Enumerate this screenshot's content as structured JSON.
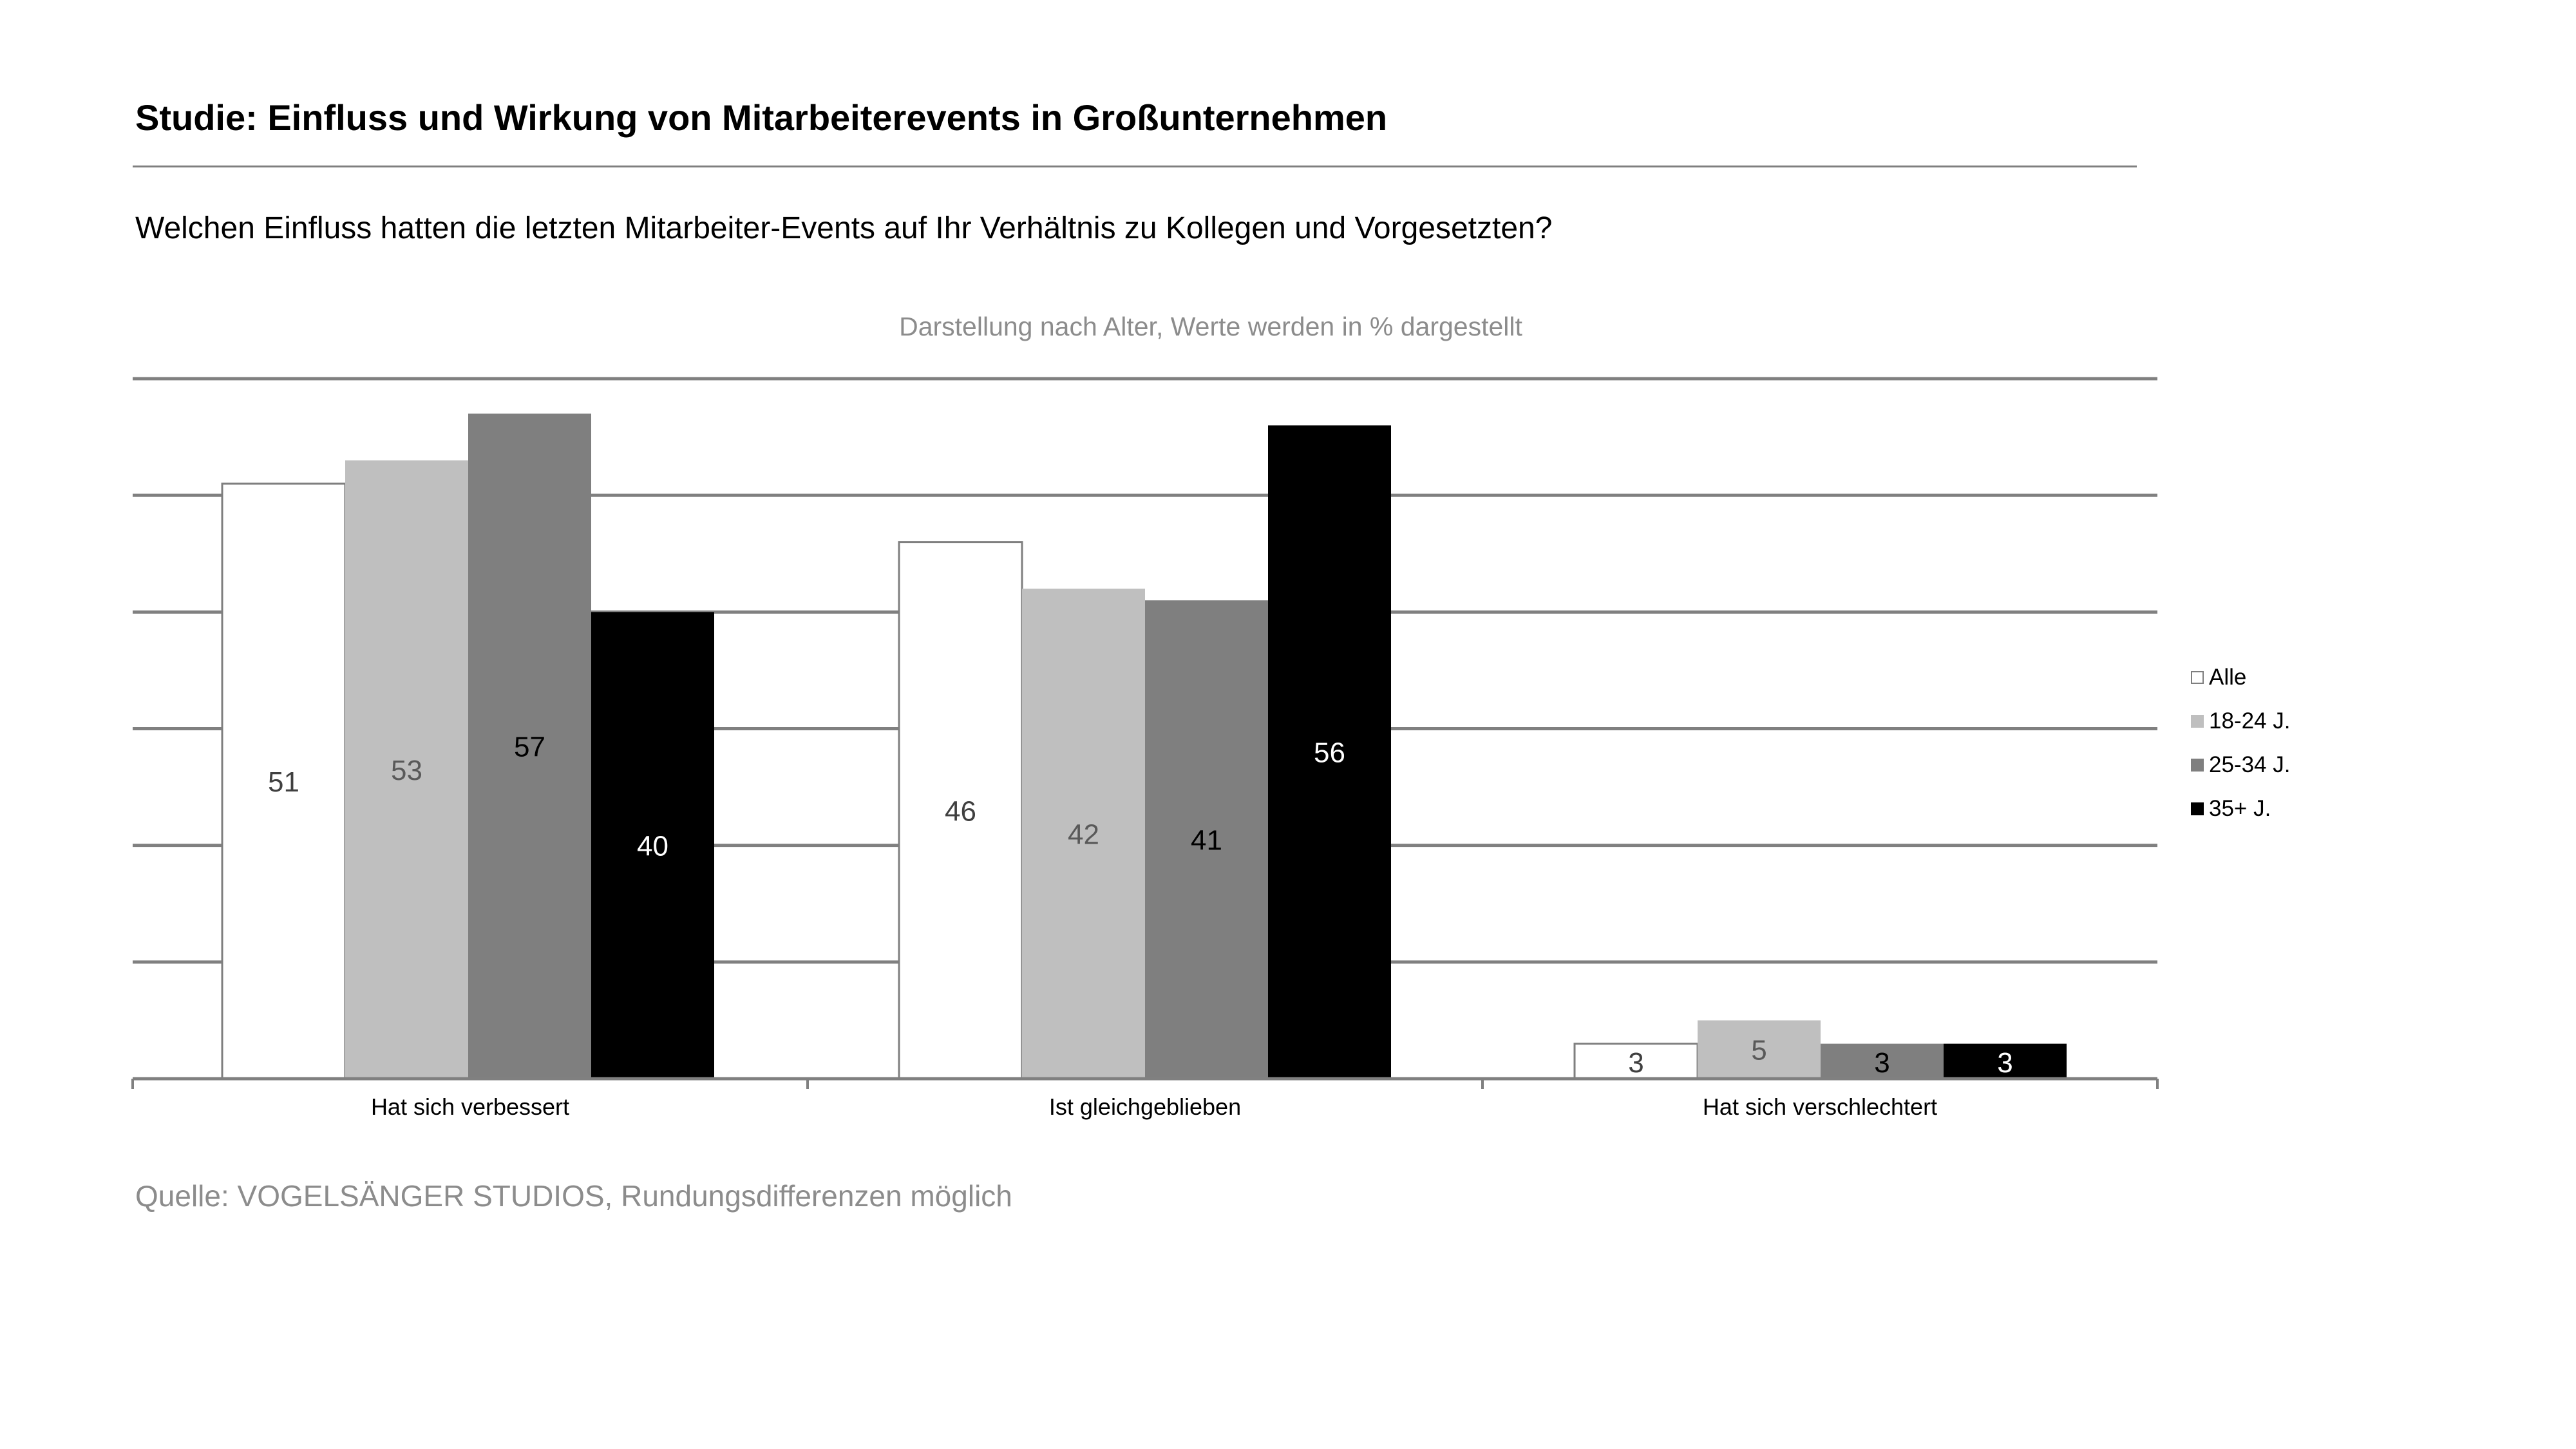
{
  "header": {
    "title": "Studie: Einfluss und Wirkung von Mitarbeiterevents in Großunternehmen",
    "question": "Welchen Einfluss hatten die letzten Mitarbeiter-Events auf Ihr Verhältnis zu Kollegen und Vorgesetzten?"
  },
  "footer": {
    "source": "Quelle: VOGELSÄNGER STUDIOS, Rundungsdifferenzen möglich"
  },
  "chart_data": {
    "type": "bar",
    "subtitle": "Darstellung nach Alter, Werte werden in % dargestellt",
    "categories": [
      "Hat sich verbessert",
      "Ist gleichgeblieben",
      "Hat sich verschlechtert"
    ],
    "series": [
      {
        "name": "Alle",
        "values": [
          51,
          46,
          3
        ],
        "color": "#ffffff",
        "label_color": "#404040"
      },
      {
        "name": "18-24 J.",
        "values": [
          53,
          42,
          5
        ],
        "color": "#bfbfbf",
        "label_color": "#595959"
      },
      {
        "name": "25-34 J.",
        "values": [
          57,
          41,
          3
        ],
        "color": "#7f7f7f",
        "label_color": "#000000"
      },
      {
        "name": "35+ J.",
        "values": [
          40,
          56,
          3
        ],
        "color": "#000000",
        "label_color": "#ffffff"
      }
    ],
    "ylim": [
      0,
      60
    ],
    "y_gridlines": [
      10,
      20,
      30,
      40,
      50,
      60
    ],
    "xlabel": "",
    "ylabel": "",
    "legend_position": "right"
  }
}
